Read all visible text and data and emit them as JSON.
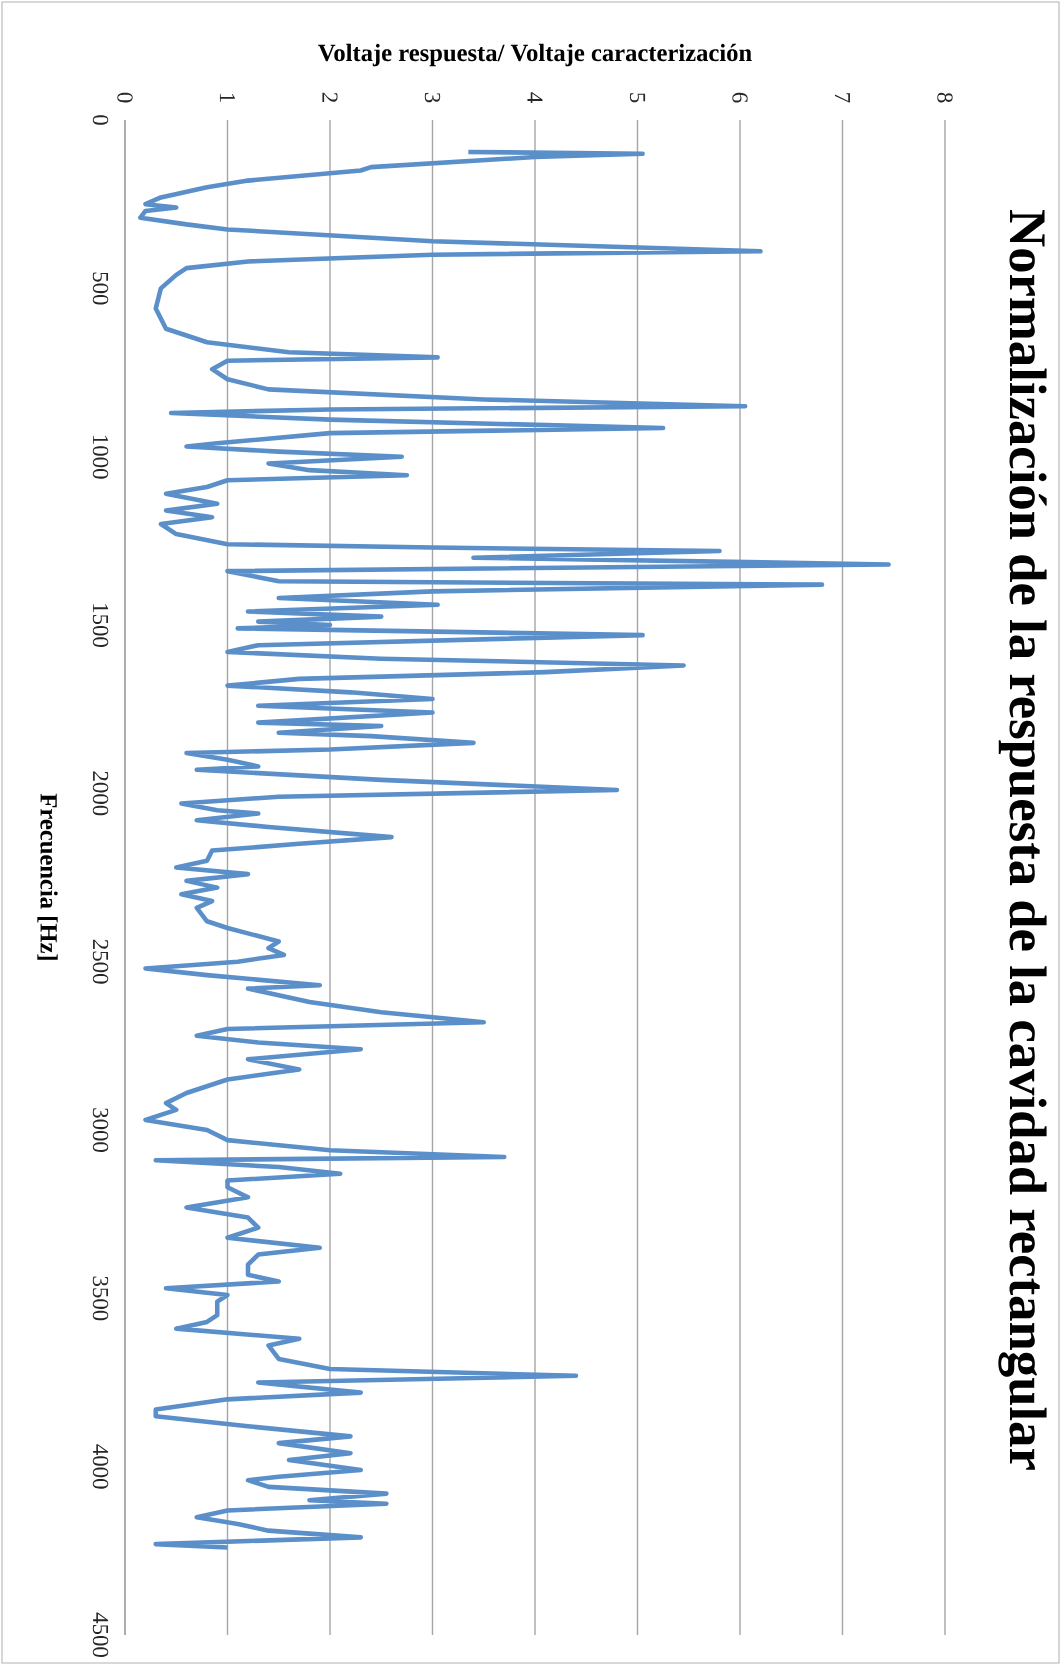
{
  "chart_data": {
    "type": "line",
    "title": "Normalización de la respuesta de la cavidad rectangular",
    "xlabel": "Voltaje respuesta/ Voltaje caracterización",
    "ylabel": "Frecuencia [Hz]",
    "x": [
      3.35,
      5.05,
      4.0,
      2.4,
      2.3,
      1.2,
      0.8,
      0.35,
      0.2,
      0.5,
      0.2,
      0.15,
      0.6,
      1.0,
      3.0,
      6.2,
      3.0,
      1.2,
      0.6,
      0.5,
      0.35,
      0.3,
      0.4,
      0.8,
      1.6,
      3.05,
      1.0,
      0.85,
      1.0,
      1.4,
      3.5,
      6.05,
      2.0,
      0.45,
      2.0,
      5.25,
      2.0,
      0.9,
      0.6,
      1.5,
      2.7,
      1.4,
      1.8,
      2.75,
      1.0,
      0.8,
      0.4,
      0.9,
      0.4,
      0.85,
      0.35,
      0.5,
      1.0,
      3.0,
      5.8,
      3.4,
      7.45,
      1.0,
      1.5,
      6.8,
      3.0,
      1.5,
      3.05,
      1.2,
      2.5,
      1.3,
      2.0,
      1.1,
      5.05,
      1.3,
      1.0,
      2.5,
      5.45,
      4.1,
      1.7,
      1.0,
      2.2,
      3.0,
      1.3,
      3.0,
      1.3,
      2.5,
      1.5,
      2.4,
      3.4,
      2.0,
      0.6,
      1.0,
      1.3,
      0.7,
      2.5,
      4.8,
      1.5,
      0.55,
      0.9,
      1.3,
      0.7,
      1.4,
      2.6,
      1.7,
      0.85,
      0.8,
      0.5,
      1.2,
      0.6,
      0.9,
      0.55,
      0.85,
      0.7,
      0.8,
      1.0,
      1.5,
      1.4,
      1.55,
      1.1,
      0.2,
      0.8,
      1.9,
      1.2,
      1.8,
      2.5,
      3.5,
      1.0,
      0.7,
      1.3,
      2.3,
      1.2,
      1.7,
      1.0,
      0.8,
      0.6,
      0.4,
      0.5,
      0.2,
      0.8,
      1.0,
      2.0,
      3.7,
      0.3,
      1.5,
      2.1,
      1.0,
      1.0,
      1.2,
      0.6,
      1.2,
      1.3,
      1.0,
      1.9,
      1.3,
      1.2,
      1.2,
      1.5,
      0.4,
      1.0,
      0.9,
      0.9,
      0.8,
      0.5,
      1.7,
      1.4,
      1.5,
      2.0,
      4.4,
      1.3,
      2.3,
      1.0,
      0.3,
      0.3,
      1.2,
      2.2,
      1.5,
      2.2,
      1.6,
      2.3,
      1.5,
      1.2,
      1.4,
      2.55,
      1.8,
      2.55,
      1.0,
      0.7,
      1.1,
      1.4,
      2.3,
      0.3,
      1.0
    ],
    "series": [
      {
        "color": "#5b8fc9",
        "values": [
          95,
          100,
          110,
          140,
          150,
          180,
          200,
          230,
          250,
          260,
          270,
          290,
          310,
          325,
          360,
          390,
          400,
          420,
          440,
          460,
          500,
          560,
          620,
          660,
          690,
          705,
          715,
          740,
          770,
          800,
          830,
          850,
          860,
          870,
          890,
          915,
          930,
          960,
          970,
          985,
          1000,
          1020,
          1040,
          1055,
          1070,
          1090,
          1110,
          1140,
          1160,
          1180,
          1200,
          1230,
          1260,
          1270,
          1280,
          1300,
          1320,
          1340,
          1370,
          1380,
          1400,
          1420,
          1440,
          1460,
          1475,
          1490,
          1500,
          1510,
          1530,
          1560,
          1580,
          1600,
          1620,
          1640,
          1660,
          1680,
          1700,
          1720,
          1740,
          1760,
          1790,
          1800,
          1820,
          1830,
          1850,
          1870,
          1880,
          1900,
          1920,
          1930,
          1960,
          1990,
          2010,
          2030,
          2050,
          2060,
          2080,
          2100,
          2130,
          2150,
          2170,
          2200,
          2220,
          2240,
          2260,
          2280,
          2300,
          2320,
          2340,
          2380,
          2400,
          2440,
          2460,
          2480,
          2500,
          2520,
          2540,
          2570,
          2580,
          2620,
          2650,
          2680,
          2700,
          2720,
          2740,
          2760,
          2790,
          2820,
          2850,
          2870,
          2890,
          2920,
          2940,
          2970,
          3000,
          3030,
          3060,
          3080,
          3090,
          3110,
          3130,
          3150,
          3170,
          3200,
          3230,
          3260,
          3290,
          3320,
          3350,
          3370,
          3400,
          3430,
          3450,
          3470,
          3490,
          3510,
          3550,
          3570,
          3590,
          3620,
          3640,
          3680,
          3710,
          3730,
          3750,
          3780,
          3800,
          3830,
          3850,
          3880,
          3910,
          3930,
          3960,
          3980,
          4010,
          4030,
          4040,
          4060,
          4080,
          4100,
          4110,
          4130,
          4150,
          4170,
          4190,
          4210,
          4230,
          4240
        ]
      }
    ],
    "xlim": [
      0,
      8
    ],
    "ylim": [
      4500,
      0
    ],
    "xticks": [
      0,
      1,
      2,
      3,
      4,
      5,
      6,
      7,
      8
    ],
    "yticks": [
      0,
      500,
      1000,
      1500,
      2000,
      2500,
      3000,
      3500,
      4000,
      4500
    ],
    "grid": "x"
  }
}
